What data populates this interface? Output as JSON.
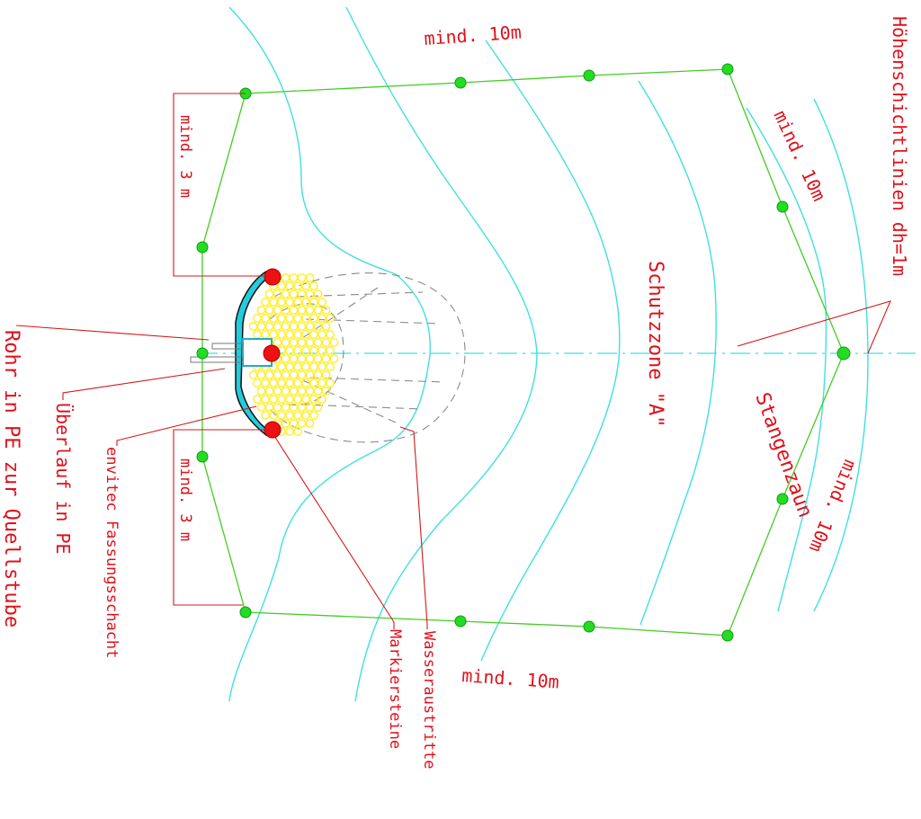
{
  "labels": {
    "contours": "Höhenschichtlinien dh=1m",
    "zone": "Schutzzone \"A\"",
    "fence": "Stangenzaun",
    "dist_top": "mind. 10m",
    "dist_bottom": "mind. 10m",
    "dist_right_upper": "mind. 10m",
    "dist_right_lower": "mind. 10m",
    "dist_left_upper": "mind. 3 m",
    "dist_left_lower": "mind. 3 m",
    "pipe": "Rohr in PE zur Quellstube",
    "overflow": "Überlauf in PE",
    "shaft": "envitec Fassungsschacht",
    "markers": "Markiersteine",
    "water": "Wasseraustritte"
  },
  "colors": {
    "annotation": "#e0101a",
    "contour_lines": "#3fe0e0",
    "fence": "#44cc22",
    "fence_posts": "#22dd22",
    "marker_stones": "#ee1111",
    "gravel": "#ffee22",
    "spring_gray": "#8a8a8a",
    "shaft": "#22ccdd"
  },
  "icons": {
    "marker": "red-circle-marker",
    "post": "green-fence-post"
  }
}
